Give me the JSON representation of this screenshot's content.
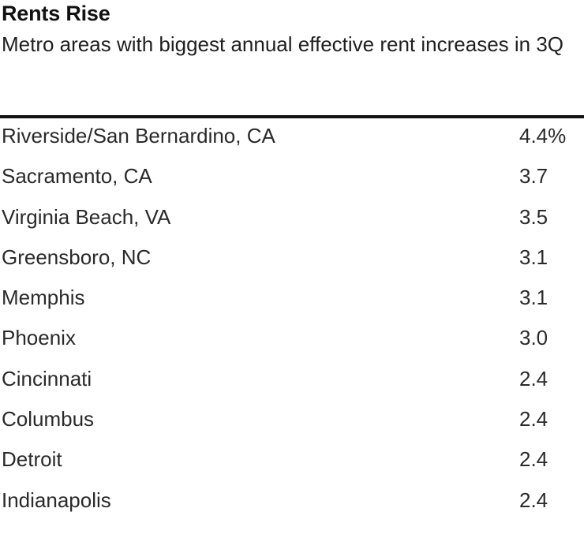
{
  "chart_data": {
    "type": "table",
    "title": "Rents Rise",
    "subtitle": "Metro areas with biggest annual effective rent increases in 3Q",
    "rows": [
      {
        "metro": "Riverside/San Bernardino, CA",
        "value": 4.4,
        "display": "4.4%"
      },
      {
        "metro": "Sacramento, CA",
        "value": 3.7,
        "display": "3.7"
      },
      {
        "metro": "Virginia Beach, VA",
        "value": 3.5,
        "display": "3.5"
      },
      {
        "metro": "Greensboro, NC",
        "value": 3.1,
        "display": "3.1"
      },
      {
        "metro": "Memphis",
        "value": 3.1,
        "display": "3.1"
      },
      {
        "metro": "Phoenix",
        "value": 3.0,
        "display": "3.0"
      },
      {
        "metro": "Cincinnati",
        "value": 2.4,
        "display": "2.4"
      },
      {
        "metro": "Columbus",
        "value": 2.4,
        "display": "2.4"
      },
      {
        "metro": "Detroit",
        "value": 2.4,
        "display": "2.4"
      },
      {
        "metro": "Indianapolis",
        "value": 2.4,
        "display": "2.4"
      }
    ]
  }
}
